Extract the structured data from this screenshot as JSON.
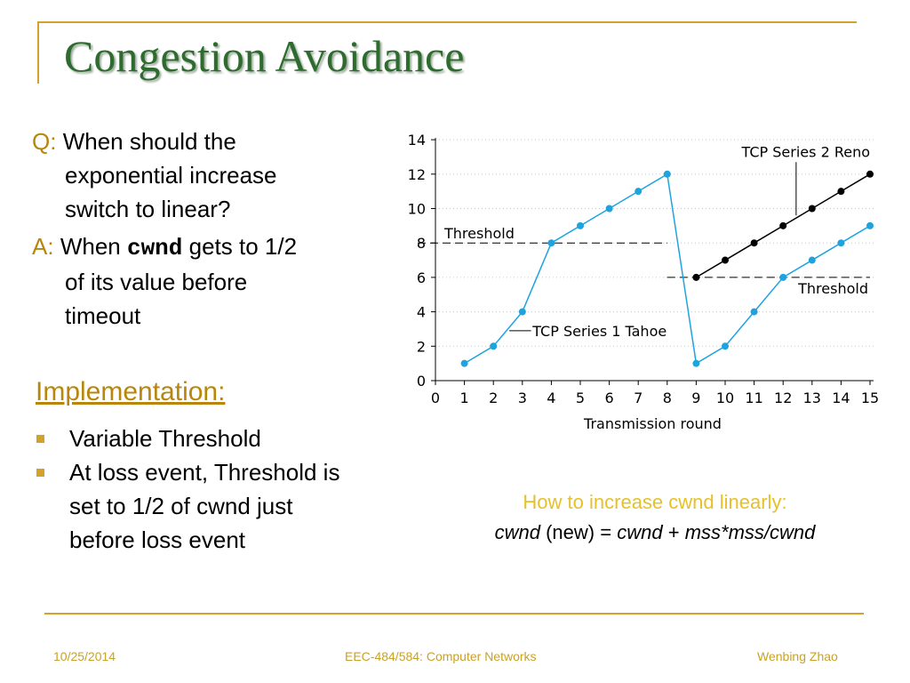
{
  "slide": {
    "title": "Congestion Avoidance",
    "q_tag": "Q:",
    "q_line1": "When should the",
    "q_line2": "exponential increase",
    "q_line3": "switch to linear?",
    "a_tag": "A:",
    "a_when": "When",
    "a_cwnd": "cwnd",
    "a_rest": "gets to 1/2",
    "a_line2": "of its value before",
    "a_line3": "timeout",
    "impl_heading": "Implementation:",
    "bullets": [
      "Variable Threshold",
      "At loss event, Threshold is",
      "set to 1/2 of cwnd just",
      "before loss event"
    ],
    "caption_line1": "How to increase cwnd linearly:",
    "caption_cwnd1": "cwnd",
    "caption_new": "(new) =",
    "caption_cwnd2": "cwnd",
    "caption_plus": "+",
    "caption_expr": "mss*mss/cwnd"
  },
  "footer": {
    "date": "10/25/2014",
    "course": "EEC-484/584: Computer Networks",
    "author": "Wenbing Zhao"
  },
  "colors": {
    "title": "#2e6b2e",
    "accent_gold": "#d4a22a",
    "tahoe": "#1fa3df",
    "reno": "#000000"
  },
  "chart_data": {
    "type": "line",
    "xlabel": "Transmission round",
    "ylabel": "",
    "xlim": [
      0,
      15
    ],
    "ylim": [
      0,
      14
    ],
    "x_ticks": [
      0,
      1,
      2,
      3,
      4,
      5,
      6,
      7,
      8,
      9,
      10,
      11,
      12,
      13,
      14,
      15
    ],
    "y_ticks": [
      0,
      2,
      4,
      6,
      8,
      10,
      12,
      14
    ],
    "grid": "horizontal-dotted",
    "series": [
      {
        "name": "TCP Series 1 Tahoe",
        "color": "#1fa3df",
        "x": [
          1,
          2,
          3,
          4,
          5,
          6,
          7,
          8,
          9,
          10,
          11,
          12,
          13,
          14,
          15
        ],
        "y": [
          1,
          2,
          4,
          8,
          9,
          10,
          11,
          12,
          1,
          2,
          4,
          6,
          7,
          8,
          9
        ]
      },
      {
        "name": "TCP Series 2 Reno",
        "color": "#000000",
        "x": [
          9,
          10,
          11,
          12,
          13,
          14,
          15
        ],
        "y": [
          6,
          7,
          8,
          9,
          10,
          11,
          12
        ]
      }
    ],
    "thresholds": [
      {
        "label": "Threshold",
        "y": 8,
        "x_range": [
          0,
          8
        ]
      },
      {
        "label": "Threshold",
        "y": 6,
        "x_range": [
          8,
          15
        ]
      }
    ]
  }
}
